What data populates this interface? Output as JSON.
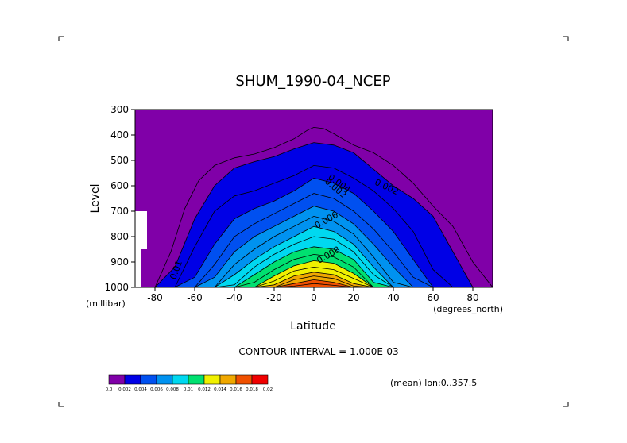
{
  "chart_data": {
    "type": "heatmap",
    "title": "SHUM_1990-04_NCEP",
    "xlabel": "Latitude",
    "ylabel": "Level",
    "xunit": "(degrees_north)",
    "yunit": "(millibar)",
    "xlim": [
      -90,
      90
    ],
    "ylim": [
      300,
      1000
    ],
    "y_inverted": true,
    "xticks": [
      -80,
      -60,
      -40,
      -20,
      0,
      20,
      40,
      60,
      80
    ],
    "xtick_labels": [
      "-80",
      "-60",
      "-40",
      "-20",
      "0",
      "20",
      "40",
      "60",
      "80"
    ],
    "yticks": [
      300,
      400,
      500,
      600,
      700,
      800,
      900,
      1000
    ],
    "ytick_labels": [
      "300",
      "400",
      "500",
      "600",
      "700",
      "800",
      "900",
      "1000"
    ],
    "contour_interval_text": "CONTOUR INTERVAL = 1.000E-03",
    "footer_text": "(mean) lon:0..357.5",
    "contour_labels": [
      "0.002",
      "0.004",
      "0.006",
      "0.008",
      "0.01",
      "0.002"
    ],
    "colorbar": {
      "colors": [
        "#8000a8",
        "#0000e6",
        "#0050f0",
        "#0092f0",
        "#00d8f0",
        "#00e070",
        "#f0f000",
        "#f0a800",
        "#f05000",
        "#f00000"
      ],
      "labels": [
        "0.0",
        "0.002",
        "0.004",
        "0.006",
        "0.008",
        "0.01",
        "0.012",
        "0.014",
        "0.016",
        "0.018",
        "0.02"
      ]
    },
    "profiles": {
      "lat": [
        -90,
        -80,
        -70,
        -60,
        -50,
        -40,
        -30,
        -20,
        -10,
        0,
        10,
        20,
        30,
        40,
        50,
        60,
        70,
        80,
        90
      ],
      "levels": [
        0.002,
        0.003,
        0.004,
        0.005,
        0.006,
        0.007,
        0.008,
        0.009,
        0.01,
        0.011,
        0.012,
        0.013,
        0.014,
        0.015,
        0.016,
        0.017
      ],
      "tops_mb": [
        [
          1000,
          1000,
          920,
          730,
          600,
          530,
          505,
          485,
          455,
          430,
          440,
          470,
          535,
          600,
          650,
          720,
          860,
          1000,
          1000
        ],
        [
          1000,
          1000,
          1000,
          840,
          700,
          640,
          620,
          590,
          560,
          520,
          530,
          570,
          620,
          690,
          780,
          930,
          1000,
          1000,
          1000
        ],
        [
          1000,
          1000,
          1000,
          960,
          830,
          730,
          690,
          660,
          620,
          570,
          590,
          630,
          700,
          780,
          890,
          1000,
          1000,
          1000,
          1000
        ],
        [
          1000,
          1000,
          1000,
          1000,
          910,
          800,
          750,
          710,
          670,
          630,
          650,
          700,
          770,
          860,
          960,
          1000,
          1000,
          1000,
          1000
        ],
        [
          1000,
          1000,
          1000,
          1000,
          960,
          860,
          800,
          760,
          720,
          680,
          700,
          750,
          830,
          920,
          1000,
          1000,
          1000,
          1000,
          1000
        ],
        [
          1000,
          1000,
          1000,
          1000,
          1000,
          910,
          850,
          800,
          760,
          720,
          740,
          790,
          880,
          980,
          1000,
          1000,
          1000,
          1000,
          1000
        ],
        [
          1000,
          1000,
          1000,
          1000,
          1000,
          950,
          890,
          840,
          800,
          760,
          780,
          830,
          920,
          1000,
          1000,
          1000,
          1000,
          1000,
          1000
        ],
        [
          1000,
          1000,
          1000,
          1000,
          1000,
          990,
          920,
          870,
          830,
          800,
          810,
          860,
          950,
          1000,
          1000,
          1000,
          1000,
          1000,
          1000
        ],
        [
          1000,
          1000,
          1000,
          1000,
          1000,
          1000,
          950,
          900,
          860,
          840,
          850,
          890,
          980,
          1000,
          1000,
          1000,
          1000,
          1000,
          1000
        ],
        [
          1000,
          1000,
          1000,
          1000,
          1000,
          1000,
          980,
          930,
          890,
          870,
          880,
          920,
          1000,
          1000,
          1000,
          1000,
          1000,
          1000,
          1000
        ],
        [
          1000,
          1000,
          1000,
          1000,
          1000,
          1000,
          1000,
          955,
          915,
          895,
          905,
          945,
          1000,
          1000,
          1000,
          1000,
          1000,
          1000,
          1000
        ],
        [
          1000,
          1000,
          1000,
          1000,
          1000,
          1000,
          1000,
          975,
          935,
          920,
          930,
          965,
          1000,
          1000,
          1000,
          1000,
          1000,
          1000,
          1000
        ],
        [
          1000,
          1000,
          1000,
          1000,
          1000,
          1000,
          1000,
          990,
          955,
          940,
          950,
          985,
          1000,
          1000,
          1000,
          1000,
          1000,
          1000,
          1000
        ],
        [
          1000,
          1000,
          1000,
          1000,
          1000,
          1000,
          1000,
          1000,
          970,
          955,
          965,
          995,
          1000,
          1000,
          1000,
          1000,
          1000,
          1000,
          1000
        ],
        [
          1000,
          1000,
          1000,
          1000,
          1000,
          1000,
          1000,
          1000,
          985,
          970,
          980,
          1000,
          1000,
          1000,
          1000,
          1000,
          1000,
          1000,
          1000
        ],
        [
          1000,
          1000,
          1000,
          1000,
          1000,
          1000,
          1000,
          1000,
          995,
          985,
          992,
          1000,
          1000,
          1000,
          1000,
          1000,
          1000,
          1000,
          1000
        ]
      ],
      "line_0_001": {
        "lat": [
          -90,
          -80,
          -72,
          -65,
          -58,
          -50,
          -40,
          -30,
          -20,
          -10,
          -3,
          0,
          5,
          10,
          20,
          30,
          40,
          50,
          60,
          70,
          80,
          90
        ],
        "mb": [
          1000,
          1000,
          860,
          690,
          580,
          520,
          490,
          475,
          450,
          415,
          380,
          370,
          375,
          395,
          440,
          470,
          520,
          590,
          680,
          760,
          900,
          1000
        ]
      }
    },
    "masked_region": {
      "lat": [
        -90,
        -84,
        -84,
        -87,
        -87,
        -90
      ],
      "mb": [
        700,
        700,
        850,
        850,
        1000,
        1000
      ]
    }
  }
}
